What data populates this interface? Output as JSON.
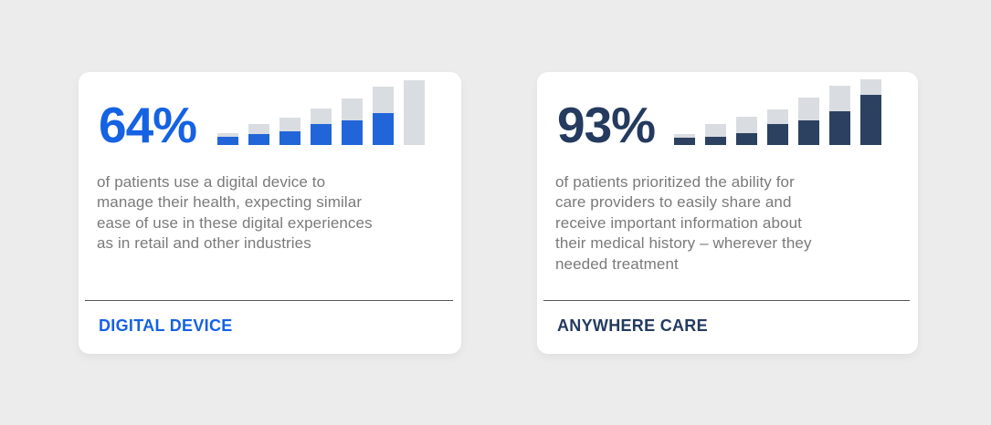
{
  "page": {
    "background": "#ECECEC",
    "card_background": "#FFFFFF",
    "body_text_color": "#7A7A7A",
    "divider_color": "#55575B"
  },
  "cards": [
    {
      "stat": "64%",
      "label": "DIGITAL DEVICE",
      "description_lines": [
        "of patients use a digital device to",
        "manage their health, expecting similar",
        "ease of use in these digital experiences",
        "as in retail and other industries"
      ],
      "colors": {
        "accent": "#1562E3",
        "bar_fill": "#2165D9",
        "bar_track": "#D9DDE1"
      },
      "bars": {
        "totals": [
          13,
          23,
          30,
          40,
          51,
          64,
          71
        ],
        "fills": [
          9,
          12,
          15,
          23,
          27,
          35,
          0
        ]
      }
    },
    {
      "stat": "93%",
      "label": "ANYWHERE CARE",
      "description_lines": [
        "of patients prioritized the ability for",
        "care providers to easily share and",
        "receive important information about",
        "their medical history – wherever they",
        "needed treatment"
      ],
      "colors": {
        "accent": "#243A5E",
        "bar_fill": "#2C4160",
        "bar_track": "#D9DDE1"
      },
      "bars": {
        "totals": [
          12,
          23,
          31,
          39,
          52,
          65,
          72
        ],
        "fills": [
          8,
          9,
          13,
          23,
          27,
          37,
          55
        ]
      }
    }
  ],
  "chart_data": [
    {
      "type": "bar",
      "title": "64% — DIGITAL DEVICE",
      "subtitle": "of patients use a digital device to manage their health, expecting similar ease of use in these digital experiences as in retail and other industries",
      "categories": [
        "1",
        "2",
        "3",
        "4",
        "5",
        "6",
        "7"
      ],
      "series": [
        {
          "name": "highlight (blue fill)",
          "values": [
            9,
            12,
            15,
            23,
            27,
            35,
            0
          ]
        },
        {
          "name": "bar total (gray track)",
          "values": [
            13,
            23,
            30,
            40,
            51,
            64,
            71
          ]
        }
      ],
      "xlabel": "",
      "ylabel": "",
      "ylim": [
        0,
        72
      ],
      "grid": false,
      "legend": "none",
      "note": "decorative ascending bar motif; no axes or tick labels shown; heights estimated in screen pixels"
    },
    {
      "type": "bar",
      "title": "93% — ANYWHERE CARE",
      "subtitle": "of patients prioritized the ability for care providers to easily share and receive important information about their medical history – wherever they needed treatment",
      "categories": [
        "1",
        "2",
        "3",
        "4",
        "5",
        "6",
        "7"
      ],
      "series": [
        {
          "name": "highlight (navy fill)",
          "values": [
            8,
            9,
            13,
            23,
            27,
            37,
            55
          ]
        },
        {
          "name": "bar total (gray track)",
          "values": [
            12,
            23,
            31,
            39,
            52,
            65,
            72
          ]
        }
      ],
      "xlabel": "",
      "ylabel": "",
      "ylim": [
        0,
        72
      ],
      "grid": false,
      "legend": "none",
      "note": "decorative ascending bar motif; no axes or tick labels shown; heights estimated in screen pixels"
    }
  ]
}
